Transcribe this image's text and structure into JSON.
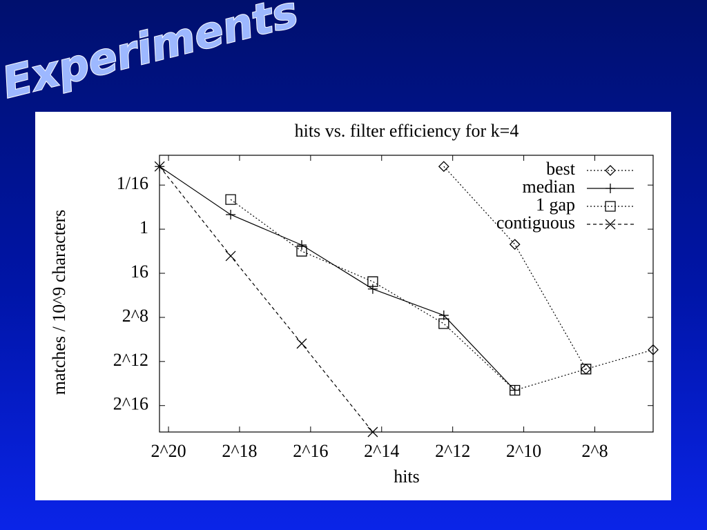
{
  "slide_title": "Experiments",
  "chart_data": {
    "type": "line",
    "title": "hits vs. filter efficiency for k=4",
    "x_label": "hits",
    "y_label": "matches / 10^9 characters",
    "x_scale": "log",
    "y_scale": "log",
    "xlim": [
      1250000,
      82
    ],
    "ylim": [
      0.0096,
      345000
    ],
    "xticks": [
      {
        "value": 1048576,
        "label": "2^20"
      },
      {
        "value": 262144,
        "label": "2^18"
      },
      {
        "value": 65536,
        "label": "2^16"
      },
      {
        "value": 16384,
        "label": "2^14"
      },
      {
        "value": 4096,
        "label": "2^12"
      },
      {
        "value": 1024,
        "label": "2^10"
      },
      {
        "value": 256,
        "label": "2^8"
      }
    ],
    "yticks": [
      {
        "value": 0.0625,
        "label": "1/16"
      },
      1,
      16,
      {
        "value": 256,
        "label": "2^8"
      },
      {
        "value": 4096,
        "label": "2^12"
      },
      {
        "value": 65536,
        "label": "2^16"
      }
    ],
    "legend": "top-right",
    "series": [
      {
        "name": "best",
        "color": "#000000",
        "line_style": "dotted",
        "marker": "diamond",
        "x": [
          4871,
          1218,
          304,
          82
        ],
        "values": [
          0.0194,
          2.6,
          6600,
          1960
        ]
      },
      {
        "name": "median",
        "color": "#000000",
        "line_style": "solid",
        "marker": "plus",
        "x": [
          1246974,
          311744,
          77936,
          19484,
          4871,
          1218
        ],
        "values": [
          0.0194,
          0.4,
          2.7,
          43,
          225,
          25000
        ]
      },
      {
        "name": "1 gap",
        "color": "#000000",
        "line_style": "dotted",
        "marker": "square",
        "x": [
          311744,
          77936,
          19484,
          4871,
          1218,
          304
        ],
        "values": [
          0.155,
          4,
          27,
          380,
          25000,
          6600
        ]
      },
      {
        "name": "contiguous",
        "color": "#000000",
        "line_style": "dashed",
        "marker": "cross",
        "x": [
          1246974,
          311744,
          77936,
          19484
        ],
        "values": [
          0.0194,
          5.4,
          1330,
          345000
        ]
      }
    ]
  }
}
